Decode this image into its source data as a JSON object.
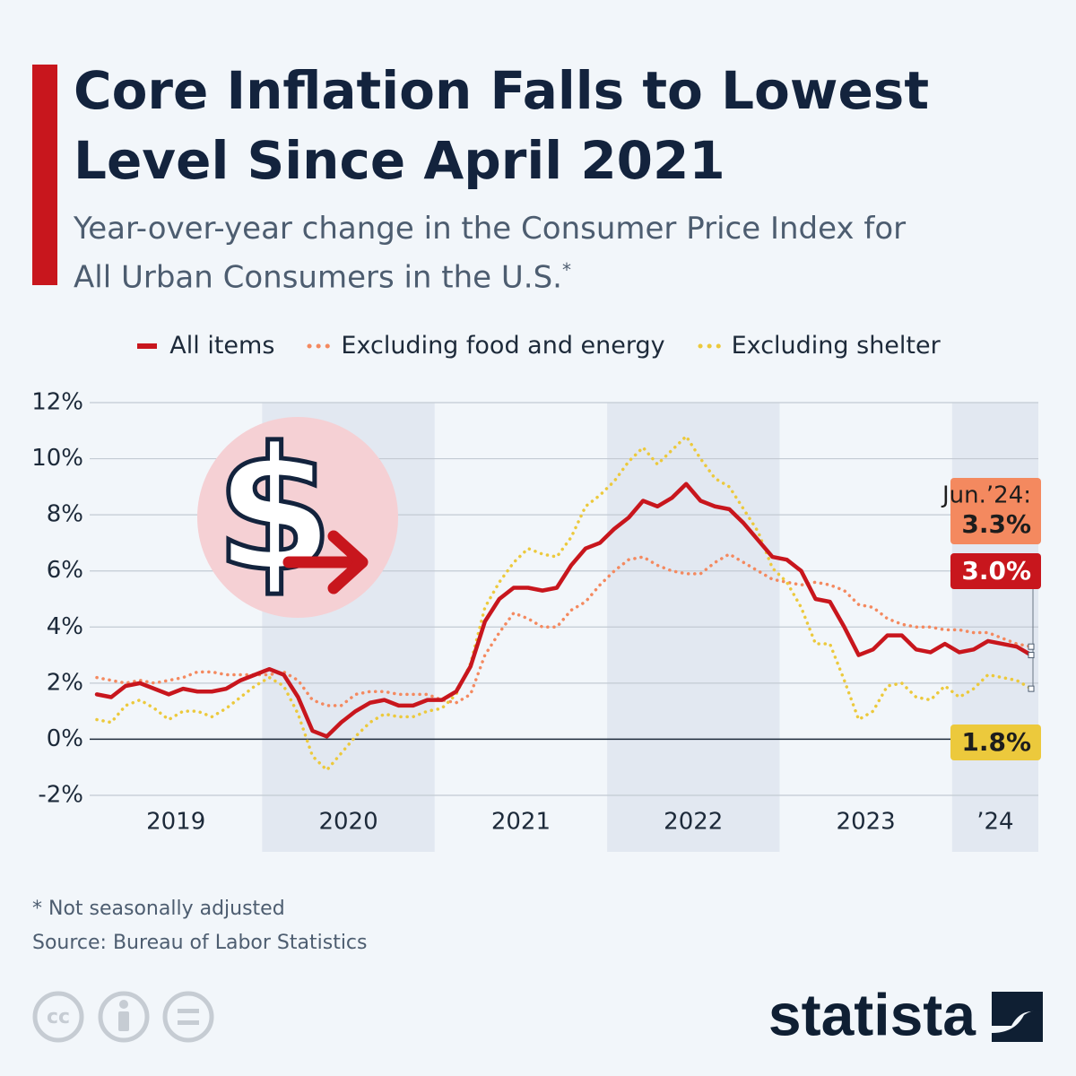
{
  "title": "Core Inflation Falls to Lowest Level Since April 2021",
  "subtitle": "Year-over-year change in the Consumer Price Index for All Urban Consumers in the U.S.",
  "subtitle_mark": "*",
  "note": "* Not seasonally adjusted",
  "source": "Source: Bureau of Labor Statistics",
  "brand": "statista",
  "chart_data": {
    "type": "line",
    "categories": [
      "2019",
      null,
      null,
      null,
      null,
      null,
      null,
      null,
      null,
      null,
      null,
      null,
      "2020",
      null,
      null,
      null,
      null,
      null,
      null,
      null,
      null,
      null,
      null,
      null,
      "2021",
      null,
      null,
      null,
      null,
      null,
      null,
      null,
      null,
      null,
      null,
      null,
      "2022",
      null,
      null,
      null,
      null,
      null,
      null,
      null,
      null,
      null,
      null,
      null,
      "2023",
      null,
      null,
      null,
      null,
      null,
      null,
      null,
      null,
      null,
      null,
      null,
      "’24",
      null,
      null,
      null,
      null,
      null
    ],
    "ylim": [
      -2,
      12
    ],
    "yticks": [
      {
        "value": -2,
        "label": "-2%"
      },
      {
        "value": 0,
        "label": "0%"
      },
      {
        "value": 2,
        "label": "2%"
      },
      {
        "value": 4,
        "label": "4%"
      },
      {
        "value": 6,
        "label": "6%"
      },
      {
        "value": 8,
        "label": "8%"
      },
      {
        "value": 10,
        "label": "10%"
      },
      {
        "value": 12,
        "label": "12%"
      }
    ],
    "grid": true,
    "end_label": "Jun.’24:",
    "series": [
      {
        "name": "All items",
        "color": "#c8161d",
        "style": "solid",
        "values": [
          1.6,
          1.5,
          1.9,
          2.0,
          1.8,
          1.6,
          1.8,
          1.7,
          1.7,
          1.8,
          2.1,
          2.3,
          2.5,
          2.3,
          1.5,
          0.3,
          0.1,
          0.6,
          1.0,
          1.3,
          1.4,
          1.2,
          1.2,
          1.4,
          1.4,
          1.7,
          2.6,
          4.2,
          5.0,
          5.4,
          5.4,
          5.3,
          5.4,
          6.2,
          6.8,
          7.0,
          7.5,
          7.9,
          8.5,
          8.3,
          8.6,
          9.1,
          8.5,
          8.3,
          8.2,
          7.7,
          7.1,
          6.5,
          6.4,
          6.0,
          5.0,
          4.9,
          4.0,
          3.0,
          3.2,
          3.7,
          3.7,
          3.2,
          3.1,
          3.4,
          3.1,
          3.2,
          3.5,
          3.4,
          3.3,
          3.0
        ],
        "value_labels": [
          null,
          null,
          null,
          null,
          null,
          null,
          null,
          null,
          null,
          null,
          null,
          null,
          null,
          null,
          null,
          null,
          null,
          null,
          null,
          null,
          null,
          null,
          null,
          null,
          null,
          null,
          null,
          null,
          null,
          null,
          null,
          null,
          null,
          null,
          null,
          null,
          null,
          null,
          null,
          null,
          null,
          null,
          null,
          null,
          null,
          null,
          null,
          null,
          null,
          null,
          null,
          null,
          null,
          null,
          null,
          null,
          null,
          null,
          null,
          null,
          null,
          null,
          null,
          null,
          null,
          "3.0%"
        ]
      },
      {
        "name": "Excluding food and energy",
        "color": "#f4895f",
        "style": "dotted",
        "values": [
          2.2,
          2.1,
          2.0,
          2.1,
          2.0,
          2.1,
          2.2,
          2.4,
          2.4,
          2.3,
          2.3,
          2.3,
          2.3,
          2.4,
          2.1,
          1.4,
          1.2,
          1.2,
          1.6,
          1.7,
          1.7,
          1.6,
          1.6,
          1.6,
          1.4,
          1.3,
          1.6,
          3.0,
          3.8,
          4.5,
          4.3,
          4.0,
          4.0,
          4.6,
          4.9,
          5.5,
          6.0,
          6.4,
          6.5,
          6.2,
          6.0,
          5.9,
          5.9,
          6.3,
          6.6,
          6.3,
          6.0,
          5.7,
          5.6,
          5.5,
          5.6,
          5.5,
          5.3,
          4.8,
          4.7,
          4.3,
          4.1,
          4.0,
          4.0,
          3.9,
          3.9,
          3.8,
          3.8,
          3.6,
          3.4,
          3.3
        ],
        "value_labels": [
          null,
          null,
          null,
          null,
          null,
          null,
          null,
          null,
          null,
          null,
          null,
          null,
          null,
          null,
          null,
          null,
          null,
          null,
          null,
          null,
          null,
          null,
          null,
          null,
          null,
          null,
          null,
          null,
          null,
          null,
          null,
          null,
          null,
          null,
          null,
          null,
          null,
          null,
          null,
          null,
          null,
          null,
          null,
          null,
          null,
          null,
          null,
          null,
          null,
          null,
          null,
          null,
          null,
          null,
          null,
          null,
          null,
          null,
          null,
          null,
          null,
          null,
          null,
          null,
          null,
          "3.3%"
        ]
      },
      {
        "name": "Excluding shelter",
        "color": "#ecc93c",
        "style": "dotted",
        "values": [
          0.7,
          0.6,
          1.2,
          1.4,
          1.1,
          0.7,
          1.0,
          1.0,
          0.8,
          1.1,
          1.5,
          1.9,
          2.2,
          1.9,
          0.9,
          -0.6,
          -1.1,
          -0.5,
          0.1,
          0.6,
          0.9,
          0.8,
          0.8,
          1.0,
          1.1,
          1.6,
          2.7,
          4.7,
          5.6,
          6.3,
          6.8,
          6.6,
          6.5,
          7.2,
          8.3,
          8.7,
          9.2,
          9.9,
          10.4,
          9.8,
          10.3,
          10.8,
          10.0,
          9.3,
          9.0,
          8.2,
          7.4,
          6.1,
          5.6,
          4.7,
          3.4,
          3.4,
          2.1,
          0.7,
          1.0,
          1.9,
          2.0,
          1.5,
          1.4,
          1.9,
          1.5,
          1.8,
          2.3,
          2.2,
          2.1,
          1.8
        ],
        "value_labels": [
          null,
          null,
          null,
          null,
          null,
          null,
          null,
          null,
          null,
          null,
          null,
          null,
          null,
          null,
          null,
          null,
          null,
          null,
          null,
          null,
          null,
          null,
          null,
          null,
          null,
          null,
          null,
          null,
          null,
          null,
          null,
          null,
          null,
          null,
          null,
          null,
          null,
          null,
          null,
          null,
          null,
          null,
          null,
          null,
          null,
          null,
          null,
          null,
          null,
          null,
          null,
          null,
          null,
          null,
          null,
          null,
          null,
          null,
          null,
          null,
          null,
          null,
          null,
          null,
          null,
          "1.8%"
        ]
      }
    ]
  }
}
